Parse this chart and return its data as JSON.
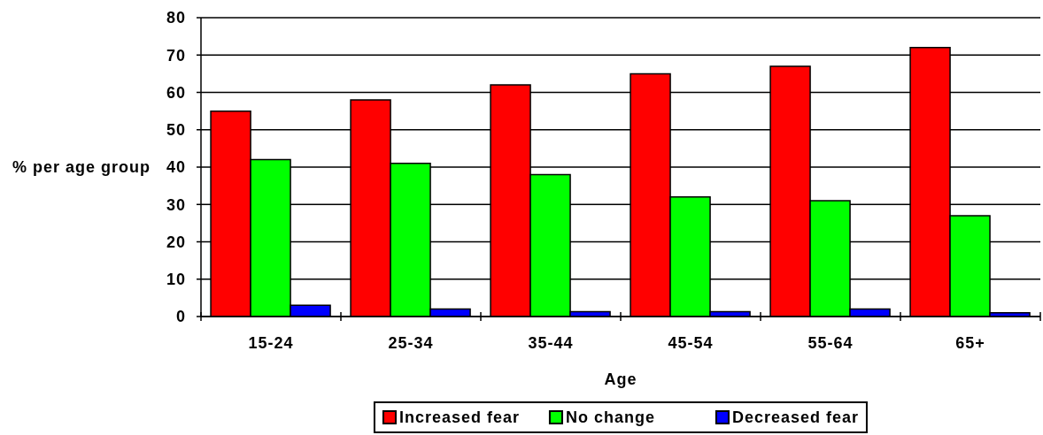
{
  "chart_data": {
    "type": "bar",
    "xlabel": "Age",
    "ylabel": "% per age group",
    "categories": [
      "15-24",
      "25-34",
      "35-44",
      "45-54",
      "55-64",
      "65+"
    ],
    "series": [
      {
        "name": "Increased fear",
        "color": "#ff0000",
        "values": [
          55,
          58,
          62,
          65,
          67,
          72
        ]
      },
      {
        "name": "No change",
        "color": "#00ff00",
        "values": [
          42,
          41,
          38,
          32,
          31,
          27
        ]
      },
      {
        "name": "Decreased fear",
        "color": "#0000ff",
        "values": [
          3,
          2,
          1.3,
          1.3,
          2,
          1
        ]
      }
    ],
    "ylim": [
      0,
      80
    ],
    "yticks": [
      0,
      10,
      20,
      30,
      40,
      50,
      60,
      70,
      80
    ],
    "grid": "y",
    "legend": "bottom"
  }
}
